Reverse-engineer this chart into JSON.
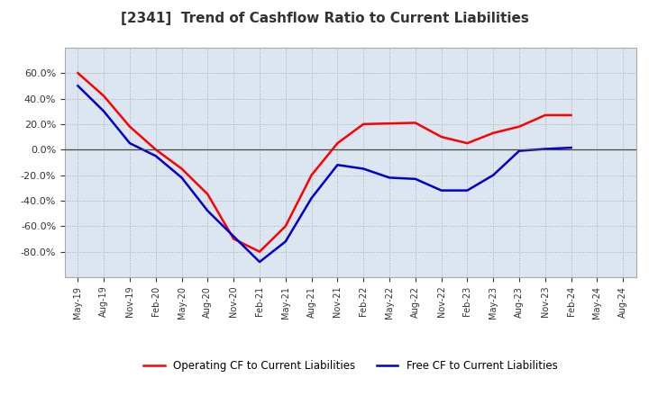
{
  "title": "[2341]  Trend of Cashflow Ratio to Current Liabilities",
  "title_fontsize": 11,
  "background_color": "#ffffff",
  "plot_bg_color": "#dce6f0",
  "grid_color": "#aaaaaa",
  "x_labels": [
    "May-19",
    "Aug-19",
    "Nov-19",
    "Feb-20",
    "May-20",
    "Aug-20",
    "Nov-20",
    "Feb-21",
    "May-21",
    "Aug-21",
    "Nov-21",
    "Feb-22",
    "May-22",
    "Aug-22",
    "Nov-22",
    "Feb-23",
    "May-23",
    "Aug-23",
    "Nov-23",
    "Feb-24",
    "May-24",
    "Aug-24"
  ],
  "operating_cf": [
    60.0,
    42.0,
    18.0,
    0.0,
    -15.0,
    -35.0,
    -70.0,
    -80.0,
    -60.0,
    -20.0,
    5.0,
    20.0,
    20.5,
    21.0,
    10.0,
    5.0,
    13.0,
    18.0,
    27.0,
    27.0,
    null,
    null
  ],
  "free_cf": [
    50.0,
    30.0,
    5.0,
    -5.0,
    -22.0,
    -48.0,
    -68.0,
    -88.0,
    -72.0,
    -38.0,
    -12.0,
    -15.0,
    -22.0,
    -23.0,
    -32.0,
    -32.0,
    -20.0,
    -1.0,
    0.5,
    1.5,
    null,
    null
  ],
  "ylim": [
    -100.0,
    80.0
  ],
  "yticks": [
    -80.0,
    -60.0,
    -40.0,
    -20.0,
    0.0,
    20.0,
    40.0,
    60.0
  ],
  "legend_labels": [
    "Operating CF to Current Liabilities",
    "Free CF to Current Liabilities"
  ],
  "line_colors": [
    "#ff0000",
    "#0000cc"
  ],
  "line_width": 1.8
}
